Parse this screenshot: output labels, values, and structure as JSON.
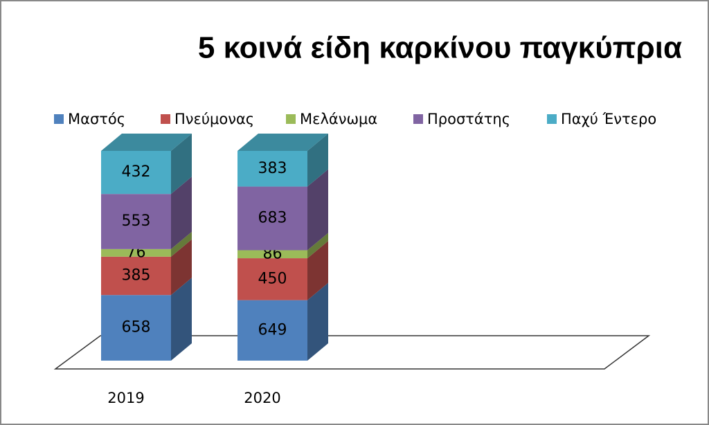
{
  "chart_data": {
    "type": "bar",
    "stacked": "percent",
    "title": "5 κοινά είδη καρκίνου παγκύπρια",
    "categories": [
      "2019",
      "2020"
    ],
    "series": [
      {
        "name": "Μαστός",
        "color": "#4f81bd",
        "values": [
          658,
          649
        ]
      },
      {
        "name": "Πνεύμονας",
        "color": "#c0504d",
        "values": [
          385,
          450
        ]
      },
      {
        "name": "Μελάνωμα",
        "color": "#9bbb59",
        "values": [
          76,
          86
        ]
      },
      {
        "name": "Προστάτης",
        "color": "#8064a2",
        "values": [
          553,
          683
        ]
      },
      {
        "name": "Παχύ Έντερο",
        "color": "#4bacc6",
        "values": [
          432,
          383
        ]
      }
    ],
    "legend": "top"
  }
}
